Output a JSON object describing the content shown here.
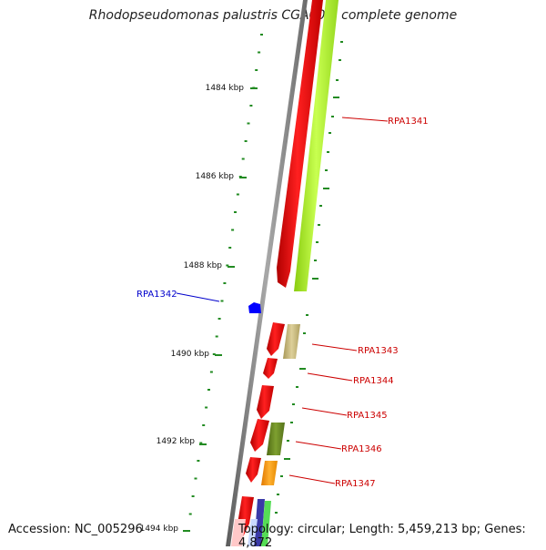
{
  "title": "Rhodopseudomonas palustris CGA009, complete genome",
  "accession": "Accession: NC_005296",
  "topology": "Topology: circular; Length: 5,459,213 bp; Genes: 4,872",
  "ruler": {
    "labels": [
      "1484 kbp",
      "1486 kbp",
      "1488 kbp",
      "1490 kbp",
      "1492 kbp",
      "1494 kbp"
    ]
  },
  "genes": [
    {
      "name": "RPA1341",
      "color": "#cc0000"
    },
    {
      "name": "RPA1342",
      "color": "#0000cc"
    },
    {
      "name": "RPA1343",
      "color": "#cc0000"
    },
    {
      "name": "RPA1344",
      "color": "#cc0000"
    },
    {
      "name": "RPA1345",
      "color": "#cc0000"
    },
    {
      "name": "RPA1346",
      "color": "#cc0000"
    },
    {
      "name": "RPA1347",
      "color": "#cc0000"
    }
  ],
  "colors": {
    "backbone": "#808080",
    "forward_cds": "#ff0000",
    "reverse_cds": "#0000ff",
    "tick": "#228b22",
    "lime": "#adff2f",
    "khaki": "#c8b878",
    "olive": "#6b8e23",
    "orange": "#ff9900"
  }
}
